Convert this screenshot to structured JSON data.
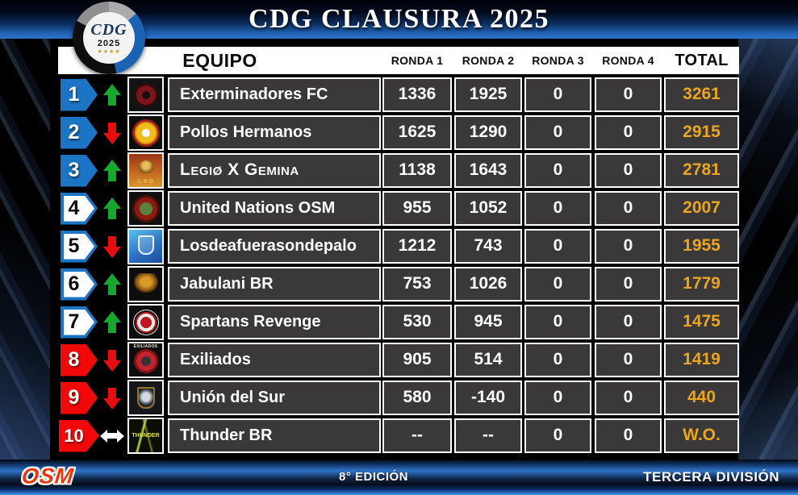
{
  "logo": {
    "text": "CDG",
    "year": "2025",
    "stars": "★★★★"
  },
  "chart_data": {
    "type": "table",
    "title": "CDG CLAUSURA 2025",
    "columns": [
      "EQUIPO",
      "RONDA 1",
      "RONDA 2",
      "RONDA 3",
      "RONDA 4",
      "TOTAL"
    ],
    "rows": [
      {
        "rank": "1",
        "badge_style": "blue",
        "trend": "up",
        "team": "Exterminadores FC",
        "ronda1": "1336",
        "ronda2": "1925",
        "ronda3": "0",
        "ronda4": "0",
        "total": "3261",
        "logo_label": ""
      },
      {
        "rank": "2",
        "badge_style": "blue",
        "trend": "down",
        "team": "Pollos Hermanos",
        "ronda1": "1625",
        "ronda2": "1290",
        "ronda3": "0",
        "ronda4": "0",
        "total": "2915",
        "logo_label": ""
      },
      {
        "rank": "3",
        "badge_style": "blue",
        "trend": "up",
        "team": "Legiø X Gemina",
        "ronda1": "1138",
        "ronda2": "1643",
        "ronda3": "0",
        "ronda4": "0",
        "total": "2781",
        "logo_label": "L·X·G"
      },
      {
        "rank": "4",
        "badge_style": "outline",
        "trend": "up",
        "team": "United Nations OSM",
        "ronda1": "955",
        "ronda2": "1052",
        "ronda3": "0",
        "ronda4": "0",
        "total": "2007",
        "logo_label": ""
      },
      {
        "rank": "5",
        "badge_style": "outline",
        "trend": "down",
        "team": "Losdeafuerasondepalo",
        "ronda1": "1212",
        "ronda2": "743",
        "ronda3": "0",
        "ronda4": "0",
        "total": "1955",
        "logo_label": ""
      },
      {
        "rank": "6",
        "badge_style": "outline",
        "trend": "up",
        "team": "Jabulani BR",
        "ronda1": "753",
        "ronda2": "1026",
        "ronda3": "0",
        "ronda4": "0",
        "total": "1779",
        "logo_label": ""
      },
      {
        "rank": "7",
        "badge_style": "outline",
        "trend": "up",
        "team": "Spartans Revenge",
        "ronda1": "530",
        "ronda2": "945",
        "ronda3": "0",
        "ronda4": "0",
        "total": "1475",
        "logo_label": ""
      },
      {
        "rank": "8",
        "badge_style": "red",
        "trend": "down",
        "team": "Exiliados",
        "ronda1": "905",
        "ronda2": "514",
        "ronda3": "0",
        "ronda4": "0",
        "total": "1419",
        "logo_label": "EXILIADOS"
      },
      {
        "rank": "9",
        "badge_style": "red",
        "trend": "down",
        "team": "Unión del Sur",
        "ronda1": "580",
        "ronda2": "-140",
        "ronda3": "0",
        "ronda4": "0",
        "total": "440",
        "logo_label": ""
      },
      {
        "rank": "10",
        "badge_style": "red",
        "trend": "both",
        "team": "Thunder BR",
        "ronda1": "--",
        "ronda2": "--",
        "ronda3": "0",
        "ronda4": "0",
        "total": "W.O.",
        "logo_label": "THUNDER"
      }
    ]
  },
  "footer": {
    "brand": "OSM",
    "edition": "8° EDICIÓN",
    "division": "TERCERA DIVISIÓN"
  },
  "colors": {
    "accent_gold": "#EDA61C",
    "badge_blue": "#1B74C4",
    "badge_red": "#F20808",
    "trend_green": "#17A62E",
    "trend_red": "#E80D0D",
    "cell_bg": "#3A3839",
    "header_blue": "#2F74CA"
  }
}
